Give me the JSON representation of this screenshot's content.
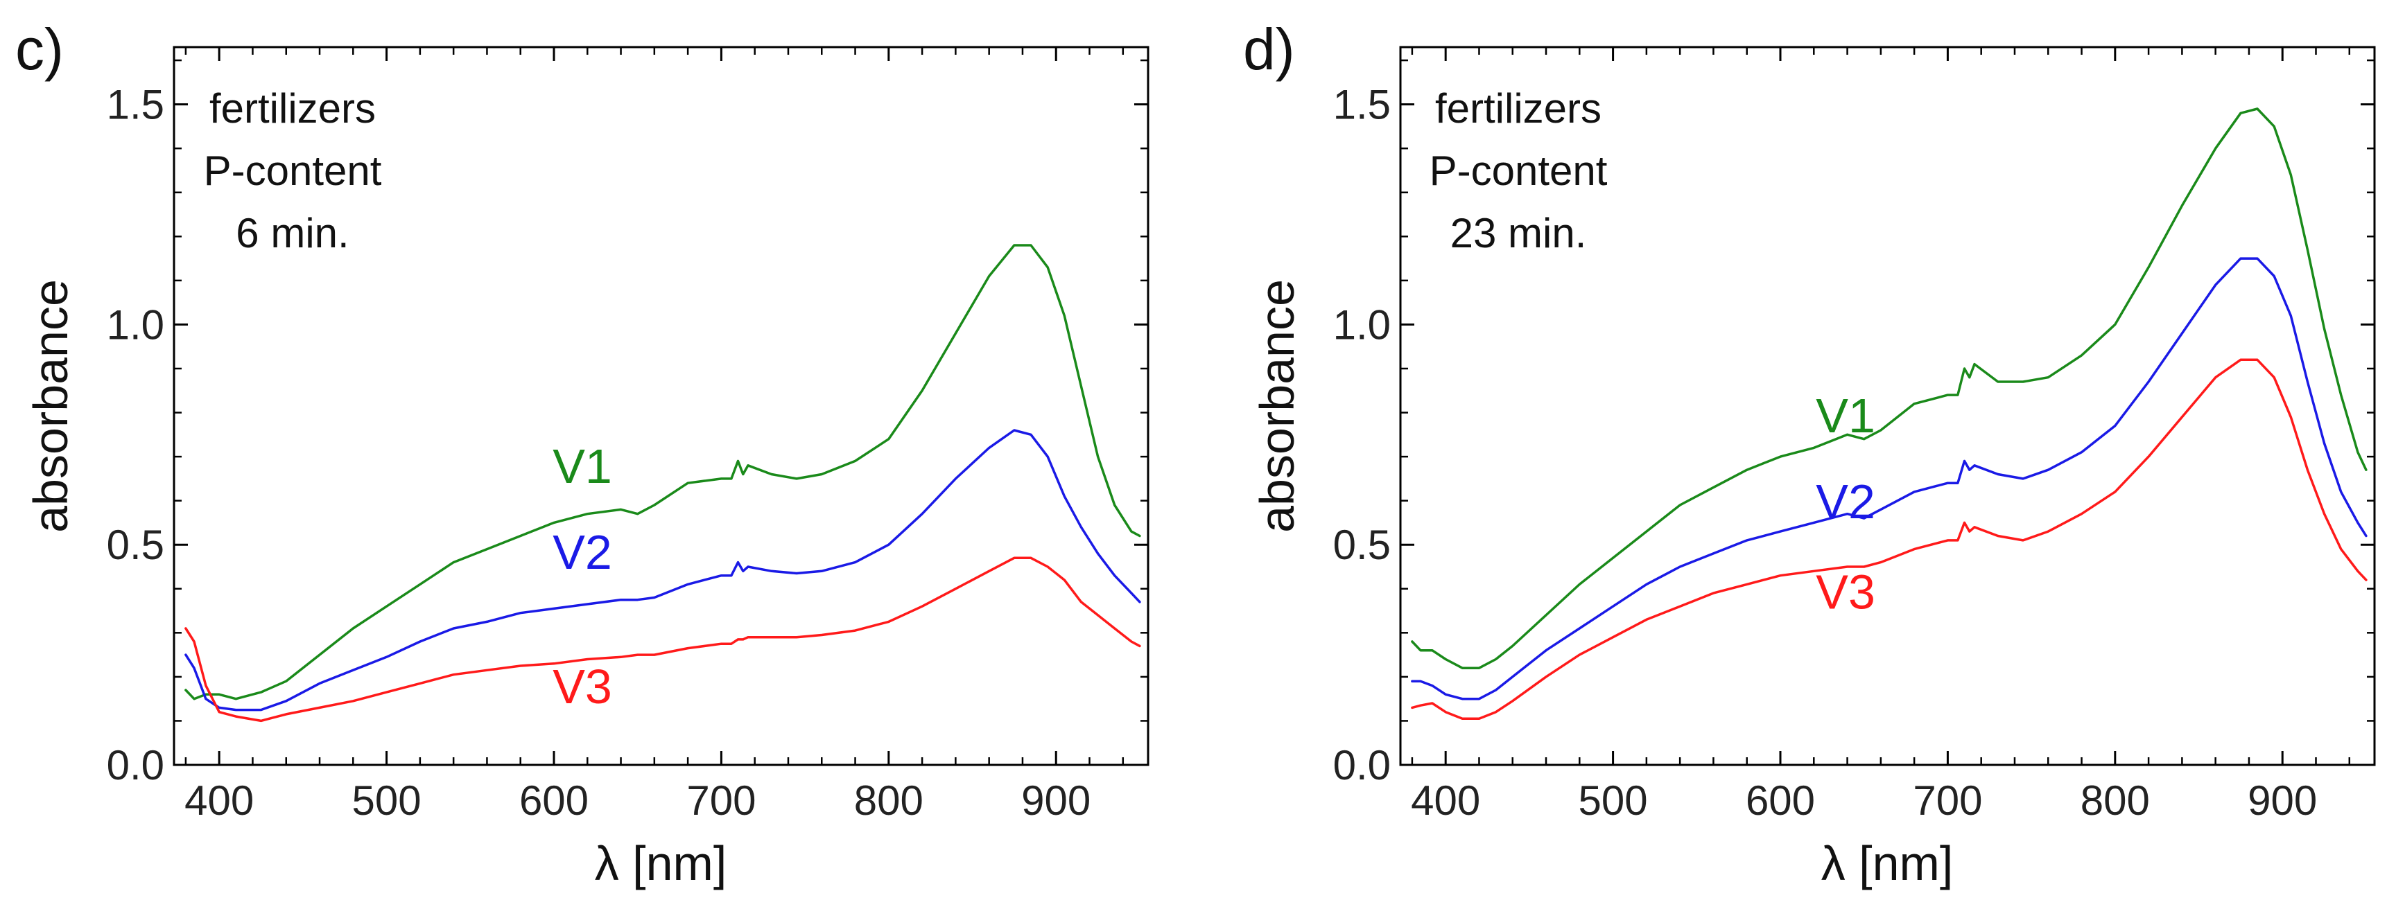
{
  "chart_data": [
    {
      "type": "line",
      "panel": "c)",
      "xlabel": "λ [nm]",
      "ylabel": "absorbance",
      "xlim": [
        373,
        955
      ],
      "ylim": [
        0,
        1.63
      ],
      "xticks": [
        400,
        500,
        600,
        700,
        800,
        900
      ],
      "xtick_labels": [
        "400",
        "500",
        "600",
        "700",
        "800",
        "900"
      ],
      "yticks": [
        0,
        0.5,
        1,
        1.5
      ],
      "ytick_labels": [
        "0.0",
        "0.5",
        "1.0",
        "1.5"
      ],
      "annotation": [
        "fertilizers",
        "P-content",
        "6 min."
      ],
      "series": [
        {
          "name": "V1",
          "color": "#1a8a1a",
          "label_at": [
            393,
            0.64
          ],
          "x": [
            380,
            385,
            392,
            400,
            410,
            425,
            440,
            460,
            480,
            500,
            520,
            540,
            560,
            580,
            600,
            620,
            640,
            650,
            660,
            680,
            700,
            706,
            710,
            713,
            716,
            730,
            745,
            760,
            780,
            800,
            820,
            840,
            860,
            875,
            885,
            895,
            905,
            915,
            925,
            935,
            945,
            950
          ],
          "values": [
            0.17,
            0.15,
            0.16,
            0.16,
            0.15,
            0.165,
            0.19,
            0.25,
            0.31,
            0.36,
            0.41,
            0.46,
            0.49,
            0.52,
            0.55,
            0.57,
            0.58,
            0.57,
            0.59,
            0.64,
            0.65,
            0.65,
            0.69,
            0.66,
            0.68,
            0.66,
            0.65,
            0.66,
            0.69,
            0.74,
            0.85,
            0.98,
            1.11,
            1.18,
            1.18,
            1.13,
            1.02,
            0.86,
            0.7,
            0.59,
            0.53,
            0.52
          ]
        },
        {
          "name": "V2",
          "color": "#1a1ae6",
          "label_at": [
            393,
            0.445
          ],
          "x": [
            380,
            385,
            392,
            400,
            410,
            425,
            440,
            460,
            480,
            500,
            520,
            540,
            560,
            580,
            600,
            620,
            640,
            650,
            660,
            680,
            700,
            706,
            710,
            713,
            716,
            730,
            745,
            760,
            780,
            800,
            820,
            840,
            860,
            875,
            885,
            895,
            905,
            915,
            925,
            935,
            945,
            950
          ],
          "values": [
            0.25,
            0.22,
            0.15,
            0.13,
            0.125,
            0.125,
            0.145,
            0.185,
            0.215,
            0.245,
            0.28,
            0.31,
            0.325,
            0.345,
            0.355,
            0.365,
            0.375,
            0.375,
            0.38,
            0.41,
            0.43,
            0.43,
            0.46,
            0.44,
            0.45,
            0.44,
            0.435,
            0.44,
            0.46,
            0.5,
            0.57,
            0.65,
            0.72,
            0.76,
            0.75,
            0.7,
            0.61,
            0.54,
            0.48,
            0.43,
            0.39,
            0.37
          ]
        },
        {
          "name": "V3",
          "color": "#ff1a1a",
          "label_at": [
            387,
            0.14
          ],
          "x": [
            380,
            385,
            392,
            400,
            410,
            425,
            440,
            460,
            480,
            500,
            520,
            540,
            560,
            580,
            600,
            620,
            640,
            650,
            660,
            680,
            700,
            706,
            710,
            713,
            716,
            730,
            745,
            760,
            780,
            800,
            820,
            840,
            860,
            875,
            885,
            895,
            905,
            915,
            925,
            935,
            945,
            950
          ],
          "values": [
            0.31,
            0.28,
            0.18,
            0.12,
            0.11,
            0.1,
            0.115,
            0.13,
            0.145,
            0.165,
            0.185,
            0.205,
            0.215,
            0.225,
            0.23,
            0.24,
            0.245,
            0.25,
            0.25,
            0.265,
            0.275,
            0.275,
            0.285,
            0.285,
            0.29,
            0.29,
            0.29,
            0.295,
            0.305,
            0.325,
            0.36,
            0.4,
            0.44,
            0.47,
            0.47,
            0.45,
            0.42,
            0.37,
            0.34,
            0.31,
            0.28,
            0.27
          ]
        }
      ]
    },
    {
      "type": "line",
      "panel": "d)",
      "xlabel": "λ [nm]",
      "ylabel": "absorbance",
      "xlim": [
        373,
        955
      ],
      "ylim": [
        0,
        1.63
      ],
      "xticks": [
        400,
        500,
        600,
        700,
        800,
        900
      ],
      "xtick_labels": [
        "400",
        "500",
        "600",
        "700",
        "800",
        "900"
      ],
      "yticks": [
        0,
        0.5,
        1,
        1.5
      ],
      "ytick_labels": [
        "0.0",
        "0.5",
        "1.0",
        "1.5"
      ],
      "annotation": [
        "fertilizers",
        "P-content",
        "23 min."
      ],
      "series": [
        {
          "name": "V1",
          "color": "#1a8a1a",
          "label_at": [
            395,
            0.755
          ],
          "x": [
            380,
            385,
            392,
            400,
            410,
            420,
            430,
            440,
            460,
            480,
            500,
            520,
            540,
            560,
            580,
            600,
            620,
            640,
            650,
            660,
            680,
            700,
            706,
            710,
            713,
            716,
            730,
            745,
            760,
            780,
            800,
            820,
            840,
            860,
            875,
            885,
            895,
            905,
            915,
            925,
            935,
            945,
            950
          ],
          "values": [
            0.28,
            0.26,
            0.26,
            0.24,
            0.22,
            0.22,
            0.24,
            0.27,
            0.34,
            0.41,
            0.47,
            0.53,
            0.59,
            0.63,
            0.67,
            0.7,
            0.72,
            0.75,
            0.74,
            0.76,
            0.82,
            0.84,
            0.84,
            0.9,
            0.88,
            0.91,
            0.87,
            0.87,
            0.88,
            0.93,
            1.0,
            1.13,
            1.27,
            1.4,
            1.48,
            1.49,
            1.45,
            1.34,
            1.17,
            0.99,
            0.84,
            0.71,
            0.67
          ]
        },
        {
          "name": "V2",
          "color": "#1a1ae6",
          "label_at": [
            395,
            0.56
          ],
          "x": [
            380,
            385,
            392,
            400,
            410,
            420,
            430,
            440,
            460,
            480,
            500,
            520,
            540,
            560,
            580,
            600,
            620,
            640,
            650,
            660,
            680,
            700,
            706,
            710,
            713,
            716,
            730,
            745,
            760,
            780,
            800,
            820,
            840,
            860,
            875,
            885,
            895,
            905,
            915,
            925,
            935,
            945,
            950
          ],
          "values": [
            0.19,
            0.19,
            0.18,
            0.16,
            0.15,
            0.15,
            0.17,
            0.2,
            0.26,
            0.31,
            0.36,
            0.41,
            0.45,
            0.48,
            0.51,
            0.53,
            0.55,
            0.57,
            0.56,
            0.58,
            0.62,
            0.64,
            0.64,
            0.69,
            0.67,
            0.68,
            0.66,
            0.65,
            0.67,
            0.71,
            0.77,
            0.87,
            0.98,
            1.09,
            1.15,
            1.15,
            1.11,
            1.02,
            0.87,
            0.73,
            0.62,
            0.55,
            0.52
          ]
        },
        {
          "name": "V3",
          "color": "#ff1a1a",
          "label_at": [
            395,
            0.355
          ],
          "x": [
            380,
            385,
            392,
            400,
            410,
            420,
            430,
            440,
            460,
            480,
            500,
            520,
            540,
            560,
            580,
            600,
            620,
            640,
            650,
            660,
            680,
            700,
            706,
            710,
            713,
            716,
            730,
            745,
            760,
            780,
            800,
            820,
            840,
            860,
            875,
            885,
            895,
            905,
            915,
            925,
            935,
            945,
            950
          ],
          "values": [
            0.13,
            0.135,
            0.14,
            0.12,
            0.105,
            0.105,
            0.12,
            0.145,
            0.2,
            0.25,
            0.29,
            0.33,
            0.36,
            0.39,
            0.41,
            0.43,
            0.44,
            0.45,
            0.45,
            0.46,
            0.49,
            0.51,
            0.51,
            0.55,
            0.53,
            0.54,
            0.52,
            0.51,
            0.53,
            0.57,
            0.62,
            0.7,
            0.79,
            0.88,
            0.92,
            0.92,
            0.88,
            0.79,
            0.67,
            0.57,
            0.49,
            0.44,
            0.42
          ]
        }
      ]
    }
  ]
}
